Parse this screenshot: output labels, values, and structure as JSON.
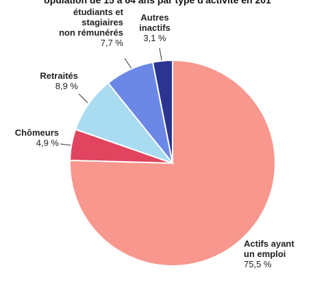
{
  "chart_data": {
    "type": "pie",
    "title": "opulation de 15 à 64 ans par type d'activité en 201",
    "categories": [
      "Actifs ayant\nun emploi",
      "Chômeurs",
      "Retraités",
      "étudiants et\nstagiaires\nnon rémunérés",
      "Autres\ninactifs"
    ],
    "values": [
      75.5,
      4.9,
      8.9,
      7.7,
      3.1
    ],
    "value_labels": [
      "75,5 %",
      "4,9 %",
      "8,9 %",
      "7,7 %",
      "3,1 %"
    ],
    "colors": [
      "#f8978d",
      "#e0445f",
      "#a9dbf1",
      "#6c88e6",
      "#2b3591"
    ]
  }
}
